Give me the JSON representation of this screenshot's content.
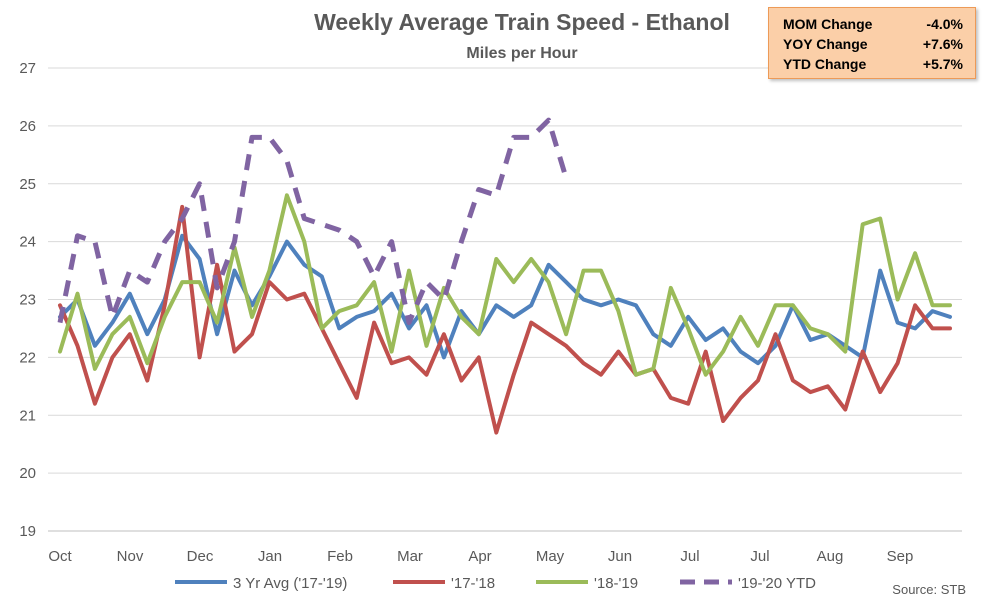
{
  "chart_data": {
    "type": "line",
    "title": "Weekly Average Train Speed - Ethanol",
    "subtitle": "Miles per Hour",
    "ylim": [
      19,
      27
    ],
    "yticks": [
      19,
      20,
      21,
      22,
      23,
      24,
      25,
      26,
      27
    ],
    "xtick_labels": [
      "Oct",
      "Nov",
      "Dec",
      "Jan",
      "Feb",
      "Mar",
      "Apr",
      "May",
      "Jun",
      "Jul",
      "Jul",
      "Aug",
      "Sep"
    ],
    "grid": true,
    "legend_position": "bottom",
    "weeks": 52,
    "series": [
      {
        "name": "3 Yr Avg ('17-'19)",
        "color": "#4f81bd",
        "dashed": false,
        "values": [
          22.7,
          23.0,
          22.2,
          22.6,
          23.1,
          22.4,
          23.0,
          24.1,
          23.7,
          22.4,
          23.5,
          22.9,
          23.4,
          24.0,
          23.6,
          23.4,
          22.5,
          22.7,
          22.8,
          23.1,
          22.5,
          22.9,
          22.0,
          22.8,
          22.4,
          22.9,
          22.7,
          22.9,
          23.6,
          23.3,
          23.0,
          22.9,
          23.0,
          22.9,
          22.4,
          22.2,
          22.7,
          22.3,
          22.5,
          22.1,
          21.9,
          22.2,
          22.9,
          22.3,
          22.4,
          22.2,
          22.0,
          23.5,
          22.6,
          22.5,
          22.8,
          22.7
        ]
      },
      {
        "name": "'17-'18",
        "color": "#c0504d",
        "dashed": false,
        "values": [
          22.9,
          22.2,
          21.2,
          22.0,
          22.4,
          21.6,
          22.9,
          24.6,
          22.0,
          23.6,
          22.1,
          22.4,
          23.3,
          23.0,
          23.1,
          22.5,
          21.9,
          21.3,
          22.6,
          21.9,
          22.0,
          21.7,
          22.4,
          21.6,
          22.0,
          20.7,
          21.7,
          22.6,
          22.4,
          22.2,
          21.9,
          21.7,
          22.1,
          21.7,
          21.8,
          21.3,
          21.2,
          22.1,
          20.9,
          21.3,
          21.6,
          22.4,
          21.6,
          21.4,
          21.5,
          21.1,
          22.1,
          21.4,
          21.9,
          22.9,
          22.5,
          22.5
        ]
      },
      {
        "name": "'18-'19",
        "color": "#9bbb59",
        "dashed": false,
        "values": [
          22.1,
          23.1,
          21.8,
          22.4,
          22.7,
          21.9,
          22.7,
          23.3,
          23.3,
          22.6,
          23.9,
          22.7,
          23.5,
          24.8,
          24.0,
          22.5,
          22.8,
          22.9,
          23.3,
          22.1,
          23.5,
          22.2,
          23.2,
          22.7,
          22.4,
          23.7,
          23.3,
          23.7,
          23.3,
          22.4,
          23.5,
          23.5,
          22.8,
          21.7,
          21.8,
          23.2,
          22.5,
          21.7,
          22.1,
          22.7,
          22.2,
          22.9,
          22.9,
          22.5,
          22.4,
          22.1,
          24.3,
          24.4,
          23.0,
          23.8,
          22.9,
          22.9
        ]
      },
      {
        "name": "'19-'20 YTD",
        "color": "#8064a2",
        "dashed": true,
        "values": [
          22.6,
          24.1,
          24.0,
          22.7,
          23.5,
          23.3,
          24.0,
          24.4,
          25.0,
          23.2,
          24.0,
          25.8,
          25.8,
          25.4,
          24.4,
          24.3,
          24.2,
          24.0,
          23.4,
          24.0,
          22.6,
          23.3,
          23.0,
          24.0,
          24.9,
          24.8,
          25.8,
          25.8,
          26.1,
          25.1
        ]
      }
    ]
  },
  "stats": [
    {
      "label": "MOM Change",
      "value": "-4.0%"
    },
    {
      "label": "YOY Change",
      "value": "+7.6%"
    },
    {
      "label": "YTD Change",
      "value": "+5.7%"
    }
  ],
  "source": "Source:  STB"
}
